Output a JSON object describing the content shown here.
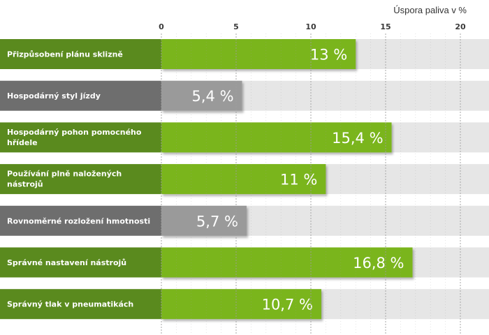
{
  "chart_data": {
    "type": "bar",
    "orientation": "horizontal",
    "xlabel": "Úspora paliva v %",
    "xlim": [
      0,
      20
    ],
    "xticks": [
      0,
      5,
      10,
      15,
      20
    ],
    "grid": true,
    "categories": [
      "Přizpůsobení plánu sklizně",
      "Hospodárný styl jízdy",
      "Hospodárný pohon pomocného hřídele",
      "Používání plně naložených nástrojů",
      "Rovnoměrné rozložení hmotnosti",
      "Správné nastavení nástrojů",
      "Správný tlak v pneumatikách"
    ],
    "values": [
      13,
      5.4,
      15.4,
      11,
      5.7,
      16.8,
      10.7
    ],
    "value_labels": [
      "13 %",
      "5,4 %",
      "15,4 %",
      "11 %",
      "5,7 %",
      "16,8 %",
      "10,7 %"
    ],
    "highlight": [
      true,
      false,
      true,
      true,
      false,
      true,
      true
    ]
  },
  "colors": {
    "highlight_bar": "#7ab51d",
    "highlight_label": "#5a8a1e",
    "muted_bar": "#9a9a9a",
    "muted_label": "#6e6e6e",
    "track": "#e6e6e6",
    "grid": "#9e9e9e",
    "text": "#333333"
  }
}
